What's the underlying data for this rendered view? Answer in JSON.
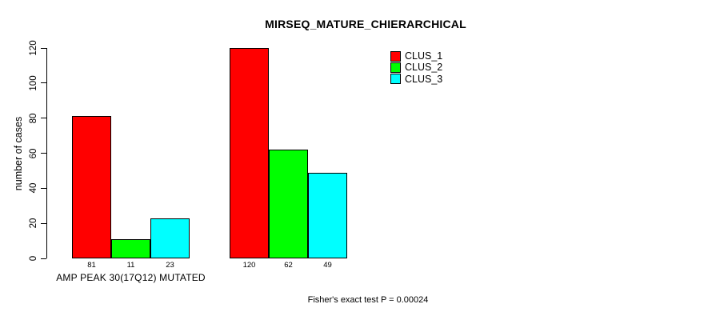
{
  "chart_data": {
    "type": "bar",
    "title": "MIRSEQ_MATURE_CHIERARCHICAL",
    "ylabel": "number of cases",
    "xlabel": "",
    "ylim": [
      0,
      120
    ],
    "yticks": [
      0,
      20,
      40,
      60,
      80,
      100,
      120
    ],
    "grid": false,
    "legend_position": "top-right-inside",
    "bar_value_labels_shown": true,
    "categories": [
      "AMP PEAK 30(17Q12) MUTATED",
      ""
    ],
    "series": [
      {
        "name": "CLUS_1",
        "color": "#ff0000",
        "values": [
          81,
          120
        ]
      },
      {
        "name": "CLUS_2",
        "color": "#00ff00",
        "values": [
          11,
          62
        ]
      },
      {
        "name": "CLUS_3",
        "color": "#00ffff",
        "values": [
          23,
          49
        ]
      }
    ],
    "annotation": "Fisher's exact test P = 0.00024"
  },
  "colors": {
    "background": "#ffffff",
    "axis": "#000000",
    "text": "#000000"
  }
}
